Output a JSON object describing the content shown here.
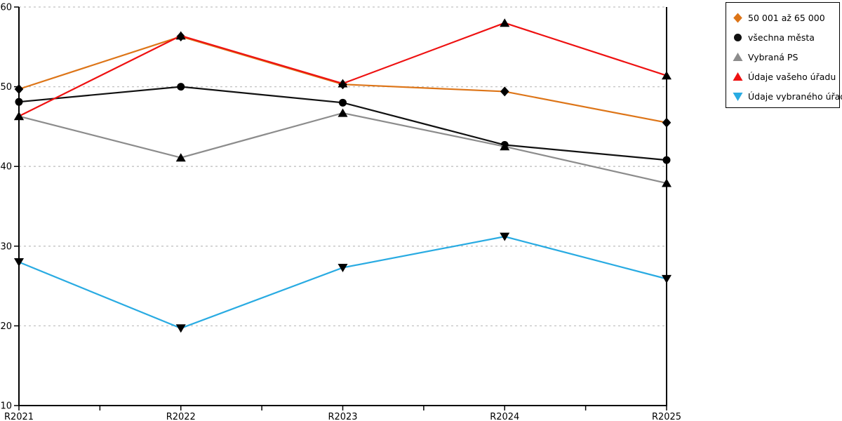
{
  "chart_data": {
    "type": "line",
    "title": "",
    "xlabel": "",
    "ylabel": "",
    "categories": [
      "R2021",
      "R2022",
      "R2023",
      "R2024",
      "R2025"
    ],
    "series": [
      {
        "id": "50001-az-65000",
        "name": "50 001 až 65 000",
        "color": "#dd7518",
        "marker": "diamond",
        "values": [
          49.7,
          56.3,
          50.3,
          49.4,
          45.5
        ]
      },
      {
        "id": "vsechna-mesta",
        "name": "všechna města",
        "color": "#111111",
        "marker": "circle",
        "values": [
          48.1,
          50.0,
          48.0,
          42.7,
          40.8
        ]
      },
      {
        "id": "vybrana-ps",
        "name": "Vybraná PS",
        "color": "#8c8c8c",
        "marker": "triangle-up",
        "values": [
          46.3,
          41.1,
          46.7,
          42.5,
          37.9
        ]
      },
      {
        "id": "udaje-vaseho-uradu",
        "name": "Údaje vašeho úřadu",
        "color": "#ee1111",
        "marker": "triangle-up",
        "values": [
          46.3,
          56.4,
          50.4,
          58.0,
          51.4
        ]
      },
      {
        "id": "udaje-vybraneho-uradu",
        "name": "Údaje vybraného úřadu",
        "color": "#29abe2",
        "marker": "triangle-down",
        "values": [
          28.0,
          19.7,
          27.3,
          31.2,
          25.9
        ]
      }
    ],
    "ylim": [
      10,
      60
    ],
    "yticks": [
      10,
      20,
      30,
      40,
      50,
      60
    ],
    "grid": "dashed-horizontal",
    "legend_position": "top-right-outside",
    "colors": {
      "grid": "#c2c2c2",
      "axis": "#000000",
      "background": "#ffffff"
    }
  }
}
